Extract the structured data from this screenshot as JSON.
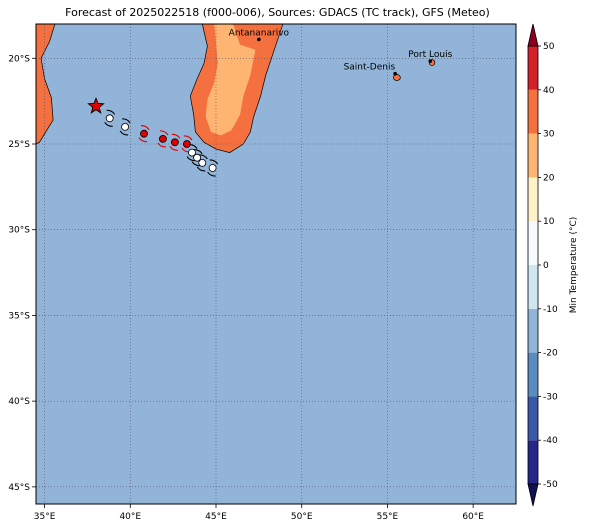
{
  "title": "Forecast of 2025022518 (f000-006), Sources: GDACS (TC track), GFS (Meteo)",
  "map": {
    "lon_range": [
      34.5,
      62.5
    ],
    "lat_range": [
      -46,
      -18
    ],
    "lon_ticks": [
      {
        "value": 35,
        "label": "35°E"
      },
      {
        "value": 40,
        "label": "40°E"
      },
      {
        "value": 45,
        "label": "45°E"
      },
      {
        "value": 50,
        "label": "50°E"
      },
      {
        "value": 55,
        "label": "55°E"
      },
      {
        "value": 60,
        "label": "60°E"
      }
    ],
    "lat_ticks": [
      {
        "value": -20,
        "label": "20°S"
      },
      {
        "value": -25,
        "label": "25°S"
      },
      {
        "value": -30,
        "label": "30°S"
      },
      {
        "value": -35,
        "label": "35°S"
      },
      {
        "value": -40,
        "label": "40°S"
      },
      {
        "value": -45,
        "label": "45°S"
      }
    ],
    "grid": true,
    "colors": {
      "ocean": "#91b4d8",
      "land_warm": "#f4703e",
      "land_mild": "#fdb571"
    }
  },
  "cities": [
    {
      "name": "Antananarivo",
      "lon": 47.5,
      "lat": -18.9
    },
    {
      "name": "Saint-Denis",
      "lon": 55.45,
      "lat": -20.9
    },
    {
      "name": "Port Louis",
      "lon": 57.5,
      "lat": -20.16
    }
  ],
  "track": {
    "current_position": {
      "lon": 38.0,
      "lat": -22.8
    },
    "points": [
      {
        "lon": 38.8,
        "lat": -23.5,
        "status": "past"
      },
      {
        "lon": 39.7,
        "lat": -24.0,
        "status": "past"
      },
      {
        "lon": 40.8,
        "lat": -24.4,
        "status": "forecast"
      },
      {
        "lon": 41.9,
        "lat": -24.7,
        "status": "forecast"
      },
      {
        "lon": 42.6,
        "lat": -24.9,
        "status": "forecast"
      },
      {
        "lon": 43.3,
        "lat": -25.0,
        "status": "forecast"
      },
      {
        "lon": 43.6,
        "lat": -25.5,
        "status": "past"
      },
      {
        "lon": 43.9,
        "lat": -25.8,
        "status": "past"
      },
      {
        "lon": 44.2,
        "lat": -26.1,
        "status": "past"
      },
      {
        "lon": 44.8,
        "lat": -26.4,
        "status": "past"
      }
    ]
  },
  "colorbar": {
    "label": "Min Temperature (°C)",
    "ticks": [
      -50,
      -40,
      -30,
      -20,
      -10,
      0,
      10,
      20,
      30,
      40,
      50
    ],
    "colors": [
      "#1e1e7e",
      "#3155a4",
      "#4a7fb8",
      "#91b4d8",
      "#c8e2ef",
      "#f3fafd",
      "#fff3cf",
      "#fdb571",
      "#f4703e",
      "#d4202b",
      "#8e0022"
    ]
  }
}
